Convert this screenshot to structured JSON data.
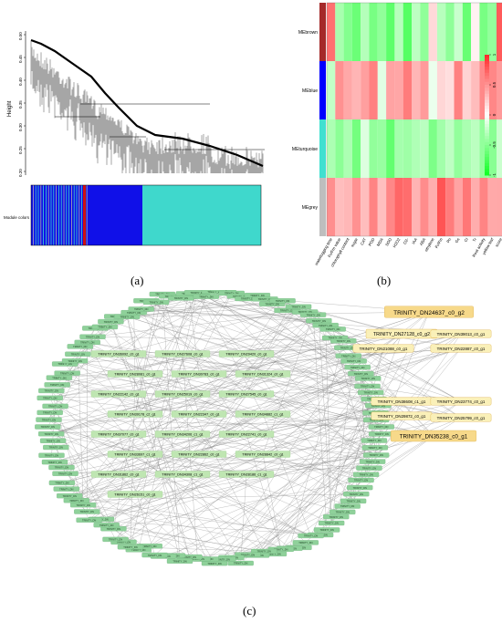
{
  "panel_labels": {
    "a": "(a)",
    "b": "(b)",
    "c": "(c)"
  },
  "panel_a": {
    "ylabel": "Height",
    "y_ticks": [
      "0.50",
      "0.45",
      "0.40",
      "0.35",
      "0.30",
      "0.25",
      "0.20"
    ],
    "module_row_label": "Module colors"
  },
  "panel_b": {
    "modules": [
      "MEbrown",
      "MEblue",
      "MEturquoise",
      "MEgrey"
    ],
    "module_colors": [
      "#a52a2a",
      "#0000ff",
      "#40e0d0",
      "#bebebe"
    ],
    "traits": [
      "waterlogging time",
      "Fv/Fm value",
      "chlorophyll content",
      "sugar",
      "CAT",
      "POD",
      "MDA",
      "SOD",
      "H2O2",
      "O2-",
      "IAA",
      "ABA",
      "ethylene",
      "Fv/Fm",
      "Pn",
      "Gs",
      "Ci",
      "Tr",
      "Root activity",
      "yellow leaf",
      "score"
    ],
    "scale_ticks": [
      "1",
      "0.5",
      "0",
      "-0.5",
      "-1"
    ]
  },
  "panel_c": {
    "highlight_nodes": [
      "TRINITY_DN24637_c0_g2",
      "TRINITY_DN27128_c0_g2",
      "TRINITY_DN39013_c0_g1",
      "TRINITY_DN21088_c0_g1",
      "TRINITY_DN22887_c0_g1",
      "TRINITY_DN38608_c1_g1",
      "TRINITY_DN23774_c0_g1",
      "TRINITY_DN29872_c0_g1",
      "TRINITY_DN25799_c0_g1",
      "TRINITY_DN35238_c0_g1"
    ],
    "inner_nodes": [
      "TRINITY_DN36092_c0_g1",
      "TRINITY_DN27608_c0_g1",
      "TRINITY_DN29420_c0_g1",
      "TRINITY_DN28081_c0_g1",
      "TRINITY_DN30783_c0_g1",
      "TRINITY_DN31324_c0_g1",
      "TRINITY_DN22142_c0_g1",
      "TRINITY_DN25019_c0_g1",
      "TRINITY_DN27545_c0_g1",
      "TRINITY_DN39178_c2_g1",
      "TRINITY_DN22347_c0_g1",
      "TRINITY_DN34882_c1_g1",
      "TRINITY_DN37077_c0_g1",
      "TRINITY_DN34206_c1_g1",
      "TRINITY_DN22741_c0_g1",
      "TRINITY_DN33697_c1_g1",
      "TRINITY_DN22862_c0_g1",
      "TRINITY_DN28842_c0_g1",
      "TRINITY_DN31862_c0_g1",
      "TRINITY_DN34308_c1_g1",
      "TRINITY_DN28186_c1_g1",
      "TRINITY_DN26151_c0_g1"
    ],
    "ring_label": "TRINITY_DN"
  }
}
